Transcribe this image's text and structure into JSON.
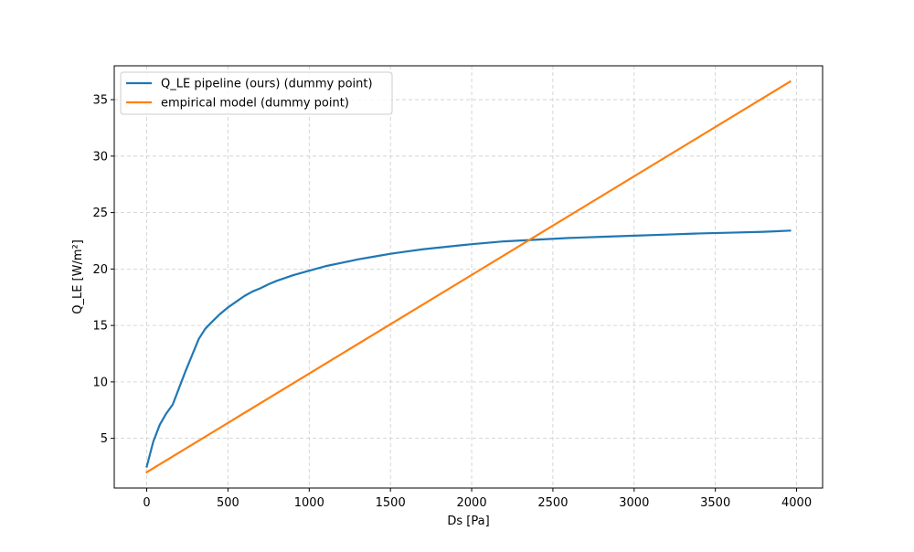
{
  "chart_data": {
    "type": "line",
    "title": "",
    "xlabel": "Ds [Pa]",
    "ylabel": "Q_LE [W/m²]",
    "xlim": [
      -200,
      4160
    ],
    "ylim": [
      0.6,
      38.0
    ],
    "xticks": [
      0,
      500,
      1000,
      1500,
      2000,
      2500,
      3000,
      3500,
      4000
    ],
    "yticks": [
      5,
      10,
      15,
      20,
      25,
      30,
      35
    ],
    "grid": true,
    "grid_style": "dashed",
    "legend_position": "upper-left",
    "series": [
      {
        "name": "Q_LE pipeline (ours) (dummy point)",
        "color": "#1f77b4",
        "x": [
          0,
          40,
          80,
          120,
          160,
          200,
          240,
          280,
          320,
          360,
          400,
          450,
          500,
          550,
          600,
          650,
          700,
          750,
          800,
          900,
          1000,
          1100,
          1200,
          1300,
          1400,
          1500,
          1600,
          1700,
          1800,
          1900,
          2000,
          2200,
          2400,
          2600,
          2800,
          3000,
          3200,
          3400,
          3600,
          3800,
          3960
        ],
        "y": [
          2.5,
          4.7,
          6.2,
          7.2,
          8.0,
          9.5,
          11.0,
          12.4,
          13.8,
          14.7,
          15.3,
          16.0,
          16.6,
          17.1,
          17.6,
          18.0,
          18.3,
          18.65,
          18.95,
          19.45,
          19.85,
          20.25,
          20.55,
          20.85,
          21.1,
          21.35,
          21.55,
          21.75,
          21.9,
          22.05,
          22.2,
          22.45,
          22.6,
          22.75,
          22.85,
          22.95,
          23.05,
          23.15,
          23.22,
          23.3,
          23.4
        ]
      },
      {
        "name": "empirical model (dummy point)",
        "color": "#ff7f0e",
        "x": [
          0,
          3960
        ],
        "y": [
          2.0,
          36.6
        ]
      }
    ]
  }
}
